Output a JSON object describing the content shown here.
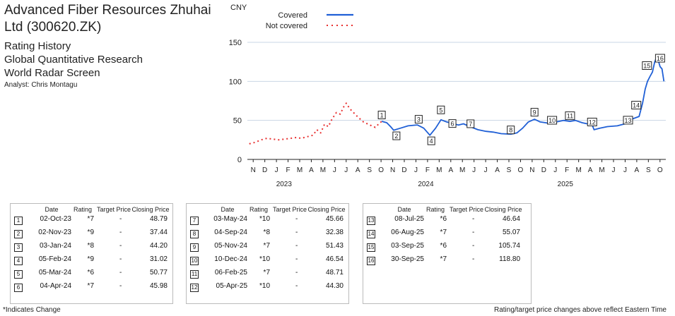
{
  "header": {
    "title": "Advanced Fiber Resources Zhuhai Ltd (300620.ZK)",
    "lines": [
      "Rating History",
      "Global Quantitative Research",
      "World Radar Screen"
    ],
    "analyst": "Analyst: Chris Montagu"
  },
  "chart_data": {
    "type": "line",
    "ylabel": "CNY",
    "ylim": [
      0,
      160
    ],
    "yticks": [
      0,
      50,
      100,
      150
    ],
    "grid": true,
    "legend_position": "top-left",
    "legend": [
      {
        "name": "Covered",
        "color": "#1f5fd6",
        "style": "solid"
      },
      {
        "name": "Not covered",
        "color": "#e83030",
        "style": "dotted"
      }
    ],
    "x_tick_labels": [
      "N",
      "D",
      "J",
      "F",
      "M",
      "A",
      "M",
      "J",
      "J",
      "A",
      "S",
      "O",
      "N",
      "D",
      "J",
      "F",
      "M",
      "A",
      "M",
      "J",
      "J",
      "A",
      "S",
      "O",
      "N",
      "D",
      "J",
      "F",
      "M",
      "A",
      "M",
      "J",
      "J",
      "A",
      "S",
      "O"
    ],
    "year_labels": [
      "2023",
      "2024",
      "2025"
    ],
    "series": [
      {
        "name": "Not covered",
        "points": [
          [
            "2022-10-20",
            20
          ],
          [
            "2022-11-05",
            22
          ],
          [
            "2022-11-20",
            25
          ],
          [
            "2022-12-05",
            27
          ],
          [
            "2022-12-20",
            26
          ],
          [
            "2023-01-05",
            25
          ],
          [
            "2023-01-20",
            26
          ],
          [
            "2023-02-05",
            27
          ],
          [
            "2023-02-20",
            28
          ],
          [
            "2023-03-05",
            27
          ],
          [
            "2023-03-20",
            29
          ],
          [
            "2023-04-05",
            31
          ],
          [
            "2023-04-15",
            38
          ],
          [
            "2023-04-25",
            34
          ],
          [
            "2023-05-05",
            45
          ],
          [
            "2023-05-15",
            42
          ],
          [
            "2023-05-25",
            52
          ],
          [
            "2023-06-05",
            60
          ],
          [
            "2023-06-15",
            58
          ],
          [
            "2023-06-25",
            68
          ],
          [
            "2023-07-01",
            72
          ],
          [
            "2023-07-10",
            65
          ],
          [
            "2023-07-20",
            60
          ],
          [
            "2023-08-01",
            54
          ],
          [
            "2023-08-15",
            48
          ],
          [
            "2023-09-01",
            44
          ],
          [
            "2023-09-15",
            41
          ],
          [
            "2023-09-25",
            46
          ],
          [
            "2023-10-02",
            48.79
          ]
        ]
      },
      {
        "name": "Covered",
        "points": [
          [
            "2023-10-02",
            48.79
          ],
          [
            "2023-10-15",
            47
          ],
          [
            "2023-10-25",
            42
          ],
          [
            "2023-11-02",
            37.44
          ],
          [
            "2023-11-20",
            40
          ],
          [
            "2023-12-10",
            43
          ],
          [
            "2024-01-03",
            44.2
          ],
          [
            "2024-01-20",
            40
          ],
          [
            "2024-02-05",
            31.02
          ],
          [
            "2024-02-20",
            40
          ],
          [
            "2024-03-05",
            50.77
          ],
          [
            "2024-03-20",
            48
          ],
          [
            "2024-04-04",
            45.98
          ],
          [
            "2024-04-20",
            44
          ],
          [
            "2024-05-03",
            45.66
          ],
          [
            "2024-05-20",
            42
          ],
          [
            "2024-06-10",
            38
          ],
          [
            "2024-07-01",
            36
          ],
          [
            "2024-07-20",
            35
          ],
          [
            "2024-08-10",
            33
          ],
          [
            "2024-09-04",
            32.38
          ],
          [
            "2024-09-20",
            34
          ],
          [
            "2024-10-05",
            40
          ],
          [
            "2024-10-20",
            48
          ],
          [
            "2024-11-05",
            51.43
          ],
          [
            "2024-11-20",
            48
          ],
          [
            "2024-12-10",
            46.54
          ],
          [
            "2025-01-01",
            48
          ],
          [
            "2025-01-20",
            50
          ],
          [
            "2025-02-06",
            48.71
          ],
          [
            "2025-02-20",
            50
          ],
          [
            "2025-03-10",
            47
          ],
          [
            "2025-04-05",
            44.3
          ],
          [
            "2025-04-10",
            38
          ],
          [
            "2025-04-25",
            40
          ],
          [
            "2025-05-15",
            42
          ],
          [
            "2025-06-10",
            43
          ],
          [
            "2025-06-25",
            45
          ],
          [
            "2025-07-08",
            46.64
          ],
          [
            "2025-07-20",
            52
          ],
          [
            "2025-08-06",
            55.07
          ],
          [
            "2025-08-15",
            72
          ],
          [
            "2025-08-22",
            90
          ],
          [
            "2025-08-28",
            100
          ],
          [
            "2025-09-03",
            105.74
          ],
          [
            "2025-09-10",
            112
          ],
          [
            "2025-09-16",
            125
          ],
          [
            "2025-09-22",
            132
          ],
          [
            "2025-09-30",
            118.8
          ],
          [
            "2025-10-05",
            116
          ],
          [
            "2025-10-10",
            100
          ]
        ]
      }
    ],
    "rating_markers": [
      {
        "n": "1",
        "date": "2023-10-02",
        "value": 48.79
      },
      {
        "n": "2",
        "date": "2023-11-02",
        "value": 37.44
      },
      {
        "n": "3",
        "date": "2024-01-03",
        "value": 44.2
      },
      {
        "n": "4",
        "date": "2024-02-05",
        "value": 31.02
      },
      {
        "n": "5",
        "date": "2024-03-05",
        "value": 50.77
      },
      {
        "n": "6",
        "date": "2024-04-04",
        "value": 45.98
      },
      {
        "n": "7",
        "date": "2024-05-03",
        "value": 45.66
      },
      {
        "n": "8",
        "date": "2024-09-04",
        "value": 32.38
      },
      {
        "n": "9",
        "date": "2024-11-05",
        "value": 51.43
      },
      {
        "n": "10",
        "date": "2024-12-10",
        "value": 46.54
      },
      {
        "n": "11",
        "date": "2025-02-06",
        "value": 48.71
      },
      {
        "n": "12",
        "date": "2025-04-05",
        "value": 44.3
      },
      {
        "n": "13",
        "date": "2025-07-08",
        "value": 46.64
      },
      {
        "n": "14",
        "date": "2025-08-06",
        "value": 55.07
      },
      {
        "n": "15",
        "date": "2025-09-03",
        "value": 105.74
      },
      {
        "n": "16",
        "date": "2025-09-30",
        "value": 118.8
      }
    ]
  },
  "table": {
    "headers": {
      "date": "Date",
      "rating": "Rating",
      "target": "Target Price",
      "close": "Closing Price"
    },
    "rows": [
      {
        "n": "1",
        "date": "02-Oct-23",
        "rating": "*7",
        "target": "-",
        "close": "48.79"
      },
      {
        "n": "2",
        "date": "02-Nov-23",
        "rating": "*9",
        "target": "-",
        "close": "37.44"
      },
      {
        "n": "3",
        "date": "03-Jan-24",
        "rating": "*8",
        "target": "-",
        "close": "44.20"
      },
      {
        "n": "4",
        "date": "05-Feb-24",
        "rating": "*9",
        "target": "-",
        "close": "31.02"
      },
      {
        "n": "5",
        "date": "05-Mar-24",
        "rating": "*6",
        "target": "-",
        "close": "50.77"
      },
      {
        "n": "6",
        "date": "04-Apr-24",
        "rating": "*7",
        "target": "-",
        "close": "45.98"
      },
      {
        "n": "7",
        "date": "03-May-24",
        "rating": "*10",
        "target": "-",
        "close": "45.66"
      },
      {
        "n": "8",
        "date": "04-Sep-24",
        "rating": "*8",
        "target": "-",
        "close": "32.38"
      },
      {
        "n": "9",
        "date": "05-Nov-24",
        "rating": "*7",
        "target": "-",
        "close": "51.43"
      },
      {
        "n": "10",
        "date": "10-Dec-24",
        "rating": "*10",
        "target": "-",
        "close": "46.54"
      },
      {
        "n": "11",
        "date": "06-Feb-25",
        "rating": "*7",
        "target": "-",
        "close": "48.71"
      },
      {
        "n": "12",
        "date": "05-Apr-25",
        "rating": "*10",
        "target": "-",
        "close": "44.30"
      },
      {
        "n": "13",
        "date": "08-Jul-25",
        "rating": "*6",
        "target": "-",
        "close": "46.64"
      },
      {
        "n": "14",
        "date": "06-Aug-25",
        "rating": "*7",
        "target": "-",
        "close": "55.07"
      },
      {
        "n": "15",
        "date": "03-Sep-25",
        "rating": "*6",
        "target": "-",
        "close": "105.74"
      },
      {
        "n": "16",
        "date": "30-Sep-25",
        "rating": "*7",
        "target": "-",
        "close": "118.80"
      }
    ]
  },
  "footer": {
    "left": "*Indicates Change",
    "right": "Rating/target price changes above reflect Eastern Time"
  }
}
